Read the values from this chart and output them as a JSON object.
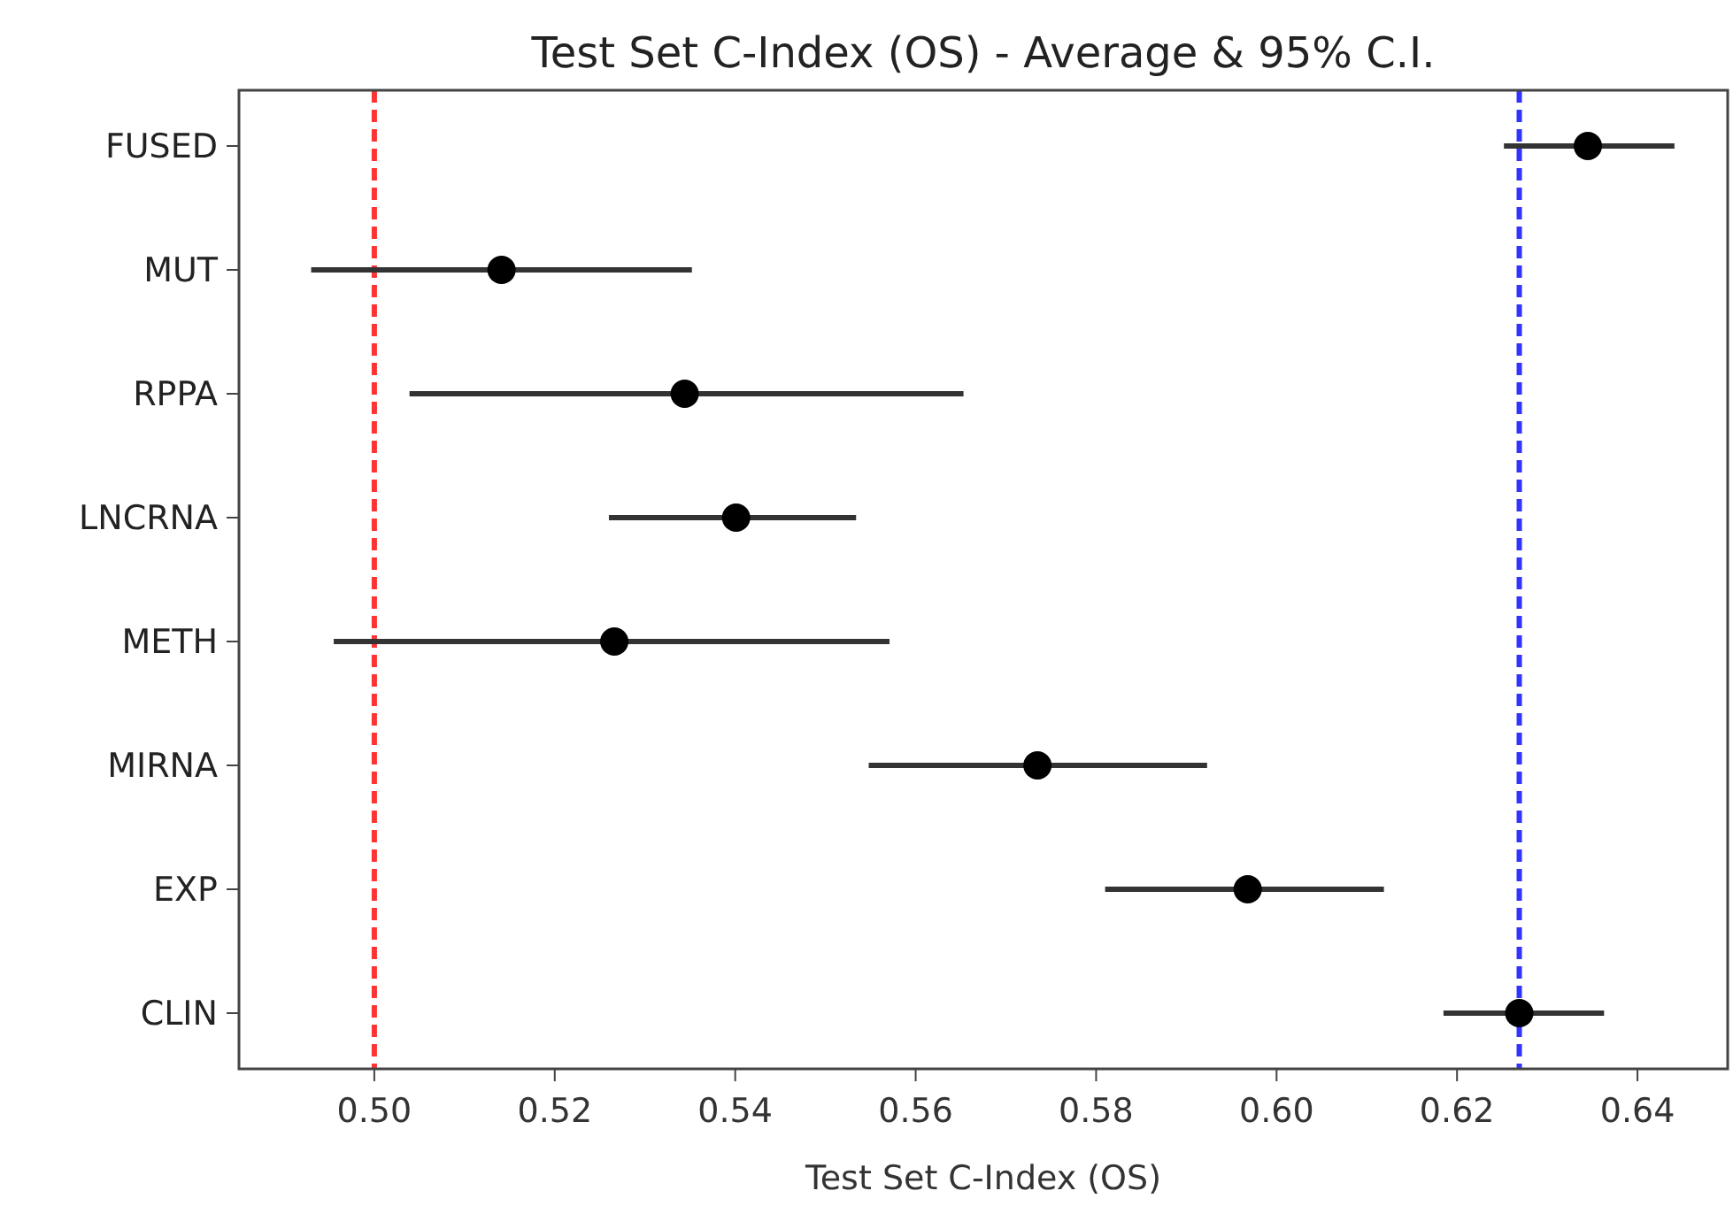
{
  "chart_data": {
    "type": "scatter",
    "orientation": "horizontal",
    "title": "Test Set C-Index (OS) - Average & 95% C.I.",
    "xlabel": "Test Set C-Index (OS)",
    "categories": [
      "FUSED",
      "MUT",
      "RPPA",
      "LNCRNA",
      "METH",
      "MIRNA",
      "EXP",
      "CLIN"
    ],
    "values": [
      0.6345,
      0.5141,
      0.5344,
      0.5401,
      0.5266,
      0.5735,
      0.5968,
      0.6269
    ],
    "errors": [
      [
        0.6252,
        0.6441
      ],
      [
        0.493,
        0.5352
      ],
      [
        0.5039,
        0.5653
      ],
      [
        0.526,
        0.5534
      ],
      [
        0.4955,
        0.5571
      ],
      [
        0.5548,
        0.5923
      ],
      [
        0.581,
        0.6119
      ],
      [
        0.6185,
        0.6363
      ]
    ],
    "color": "#000000",
    "marker": "circle",
    "xlim": [
      0.485,
      0.65
    ],
    "xticks": [
      {
        "value": 0.5,
        "label": "0.50"
      },
      0.52,
      0.54,
      0.56,
      0.58,
      {
        "value": 0.6,
        "label": "0.60"
      },
      0.62,
      0.64
    ],
    "ref_lines": [
      {
        "axis": "x",
        "value": 0.5,
        "color": "#ff3333",
        "line_style": "dashed"
      },
      {
        "axis": "x",
        "value": 0.6269,
        "color": "#3333ff",
        "line_style": "dashed"
      }
    ]
  }
}
